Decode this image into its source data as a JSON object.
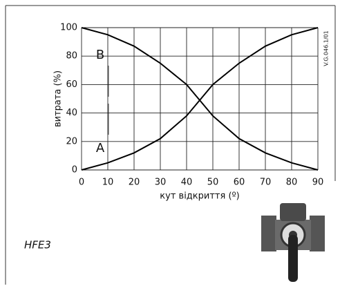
{
  "chart_data": {
    "type": "line",
    "x_label": "кут відкриття (º)",
    "y_label": "витрата (%)",
    "x": [
      0,
      10,
      20,
      30,
      40,
      50,
      60,
      70,
      80,
      90
    ],
    "series": [
      {
        "name": "A",
        "color": "#000000",
        "values": [
          0,
          5,
          12,
          22,
          38,
          60,
          75,
          87,
          95,
          100
        ]
      },
      {
        "name": "B",
        "color": "#000000",
        "values": [
          100,
          95,
          87,
          75,
          60,
          38,
          22,
          12,
          5,
          0
        ]
      }
    ],
    "xlim": [
      0,
      90
    ],
    "xticks": [
      0,
      10,
      20,
      30,
      40,
      50,
      60,
      70,
      80,
      90
    ],
    "ylim": [
      0,
      100
    ],
    "yticks": [
      0,
      20,
      40,
      60,
      80,
      100
    ],
    "grid": true
  },
  "code": "V.G.046.1/01",
  "product": "HFE3"
}
